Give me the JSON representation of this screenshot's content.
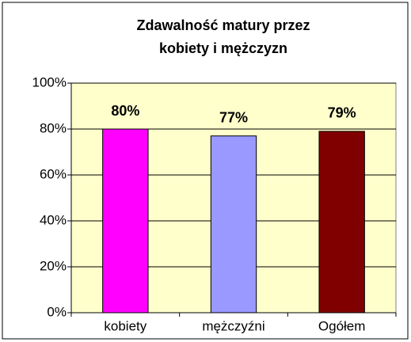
{
  "chart_data": {
    "type": "bar",
    "title": [
      "Zdawalność matury przez",
      "kobiety i mężczyzn"
    ],
    "categories": [
      "kobiety",
      "mężczyźni",
      "Ogółem"
    ],
    "values": [
      80,
      77,
      79
    ],
    "value_labels": [
      "80%",
      "77%",
      "79%"
    ],
    "colors": [
      "#ff00ff",
      "#9999ff",
      "#800000"
    ],
    "ylim": [
      0,
      100
    ],
    "yticks": [
      {
        "value": 0,
        "label": "0%"
      },
      {
        "value": 20,
        "label": "20%"
      },
      {
        "value": 40,
        "label": "40%"
      },
      {
        "value": 60,
        "label": "60%"
      },
      {
        "value": 80,
        "label": "80%"
      },
      {
        "value": 100,
        "label": "100%"
      }
    ],
    "grid": true
  }
}
